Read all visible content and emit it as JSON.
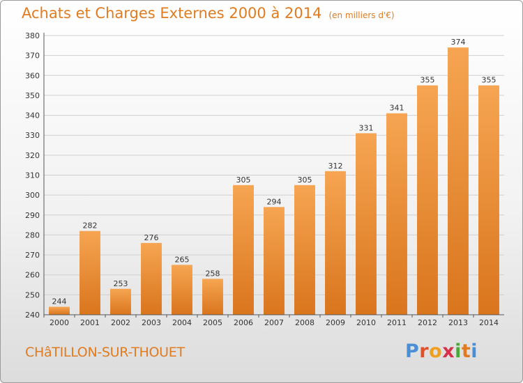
{
  "header": {
    "title": "Achats et Charges Externes 2000 à 2014",
    "unit": "(en milliers d'€)"
  },
  "footer": {
    "city": "CHâTILLON-SUR-THOUET",
    "logo_letters": [
      "P",
      "r",
      "o",
      "x",
      "i",
      "t",
      "i"
    ],
    "logo_colors": [
      "#4a8fd6",
      "#e0502a",
      "#f0a020",
      "#d6304a",
      "#4aa83a",
      "#e07b1f",
      "#4a8fd6"
    ]
  },
  "colors": {
    "accent": "#e07b1f",
    "bar_top": "#f6a552",
    "bar_bottom": "#d9751d",
    "grid": "#cfcfcf",
    "axis": "#555555"
  },
  "chart_data": {
    "type": "bar",
    "categories": [
      "2000",
      "2001",
      "2002",
      "2003",
      "2004",
      "2005",
      "2006",
      "2007",
      "2008",
      "2009",
      "2010",
      "2011",
      "2012",
      "2013",
      "2014"
    ],
    "values": [
      244,
      282,
      253,
      276,
      265,
      258,
      305,
      294,
      305,
      312,
      331,
      341,
      355,
      374,
      355
    ],
    "data_labels": [
      "244",
      "282",
      "253",
      "276",
      "265",
      "258",
      "305",
      "294",
      "305",
      "312",
      "331",
      "341",
      "355",
      "374",
      "355"
    ],
    "yticks": [
      240,
      250,
      260,
      270,
      280,
      290,
      300,
      310,
      320,
      330,
      340,
      350,
      360,
      370,
      380
    ],
    "ylim": [
      240,
      380
    ],
    "grid": true,
    "title": "Achats et Charges Externes 2000 à 2014",
    "xlabel": "",
    "ylabel": ""
  }
}
